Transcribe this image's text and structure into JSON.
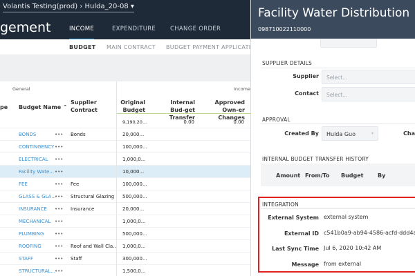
{
  "header": {
    "breadcrumb": "Volantis Testing(prod) › Hulda_20-08 ▾",
    "title_fragment": "gement",
    "tabs": [
      {
        "label": "INCOME",
        "active": true
      },
      {
        "label": "EXPENDITURE"
      },
      {
        "label": "CHANGE ORDER"
      }
    ]
  },
  "subtabs": [
    {
      "label": "BUDGET",
      "active": true
    },
    {
      "label": "MAIN CONTRACT"
    },
    {
      "label": "BUDGET PAYMENT APPLICATION"
    }
  ],
  "table": {
    "group_general": "General",
    "group_income": "Income",
    "columns": {
      "type": "pe",
      "name": "Budget Name ⌃",
      "supplier": "Supplier Contract",
      "original": "Original Budget",
      "internal": "Internal Bud-get Transfer",
      "approved": "Approved Own-er Changes"
    },
    "totals": {
      "original": "9,190,20...",
      "internal": "0.00",
      "approved": "0.00"
    },
    "more_icon": "•••",
    "rows": [
      {
        "name": "BONDS",
        "supplier": "Bonds",
        "original": "20,000..."
      },
      {
        "name": "CONTINGENCY",
        "supplier": "",
        "original": "100,000..."
      },
      {
        "name": "ELECTRICAL",
        "supplier": "",
        "original": "1,000,0..."
      },
      {
        "name": "Facility Wate...",
        "supplier": "",
        "original": "10,000...",
        "selected": true
      },
      {
        "name": "FEE",
        "supplier": "Fee",
        "original": "100,000..."
      },
      {
        "name": "GLASS & GLA...",
        "supplier": "Structural Glazing",
        "original": "500,000..."
      },
      {
        "name": "INSURANCE",
        "supplier": "Insurance",
        "original": "20,000..."
      },
      {
        "name": "MECHANICAL",
        "supplier": "",
        "original": "1,000,0..."
      },
      {
        "name": "PLUMBING",
        "supplier": "",
        "original": "500,000..."
      },
      {
        "name": "ROOFING",
        "supplier": "Roof and Wall Cla...",
        "original": "1,000,0..."
      },
      {
        "name": "STAFF",
        "supplier": "Staff",
        "original": "300,000..."
      },
      {
        "name": "STRUCTURAL...",
        "supplier": "",
        "original": "1,500,0..."
      }
    ]
  },
  "panel": {
    "title": "Facility Water Distribution",
    "code": "098710022110000",
    "supplier_details": {
      "heading": "SUPPLIER DETAILS",
      "supplier_label": "Supplier",
      "supplier_placeholder": "Select...",
      "contact_label": "Contact",
      "contact_placeholder": "Select..."
    },
    "approval": {
      "heading": "APPROVAL",
      "created_by_label": "Created By",
      "created_by_value": "Hulda Guo",
      "cut_label": "Cha"
    },
    "transfer_history": {
      "heading": "INTERNAL BUDGET TRANSFER HISTORY",
      "columns": [
        "Amount",
        "From/To",
        "Budget",
        "By"
      ]
    },
    "integration": {
      "heading": "INTEGRATION",
      "fields": [
        {
          "label": "External System",
          "value": "external system"
        },
        {
          "label": "External ID",
          "value": "c541b0a9-ab94-4586-acfd-ddd4a962"
        },
        {
          "label": "Last Sync Time",
          "value": "Jul 6, 2020 10:42 AM"
        },
        {
          "label": "Message",
          "value": "from external"
        }
      ]
    },
    "highlight_color": "#e02020"
  }
}
